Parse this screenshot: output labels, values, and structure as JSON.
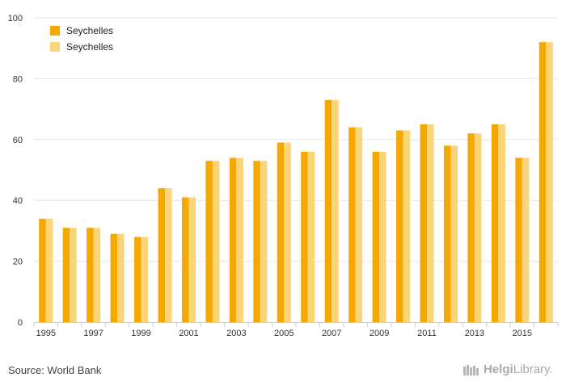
{
  "chart_data": {
    "type": "bar",
    "categories": [
      "1995",
      "1996",
      "1997",
      "1998",
      "1999",
      "2000",
      "2001",
      "2002",
      "2003",
      "2004",
      "2005",
      "2006",
      "2007",
      "2008",
      "2009",
      "2010",
      "2011",
      "2012",
      "2013",
      "2014",
      "2015",
      "2016"
    ],
    "x_tick_labels": [
      "1995",
      "1997",
      "1999",
      "2001",
      "2003",
      "2005",
      "2007",
      "2009",
      "2011",
      "2013",
      "2015"
    ],
    "y_ticks": [
      0,
      20,
      40,
      60,
      80,
      100
    ],
    "ylim": [
      0,
      100
    ],
    "series": [
      {
        "name": "Seychelles",
        "color": "#f5a800",
        "values": [
          34,
          31,
          31,
          29,
          28,
          44,
          41,
          53,
          54,
          53,
          59,
          56,
          73,
          64,
          56,
          63,
          65,
          58,
          62,
          65,
          54,
          92
        ]
      },
      {
        "name": "Seychelles",
        "color": "#fbd57a",
        "values": [
          34,
          31,
          31,
          29,
          28,
          44,
          41,
          53,
          54,
          53,
          59,
          56,
          73,
          64,
          56,
          63,
          65,
          58,
          62,
          65,
          54,
          92
        ]
      }
    ],
    "grid": true,
    "legend_position": "top-left"
  },
  "footer": {
    "source": "Source: World Bank",
    "brand_strong": "Helgi",
    "brand_rest": "Library."
  },
  "colors": {
    "grid": "#e6e6e6",
    "axis": "#cccccc"
  }
}
